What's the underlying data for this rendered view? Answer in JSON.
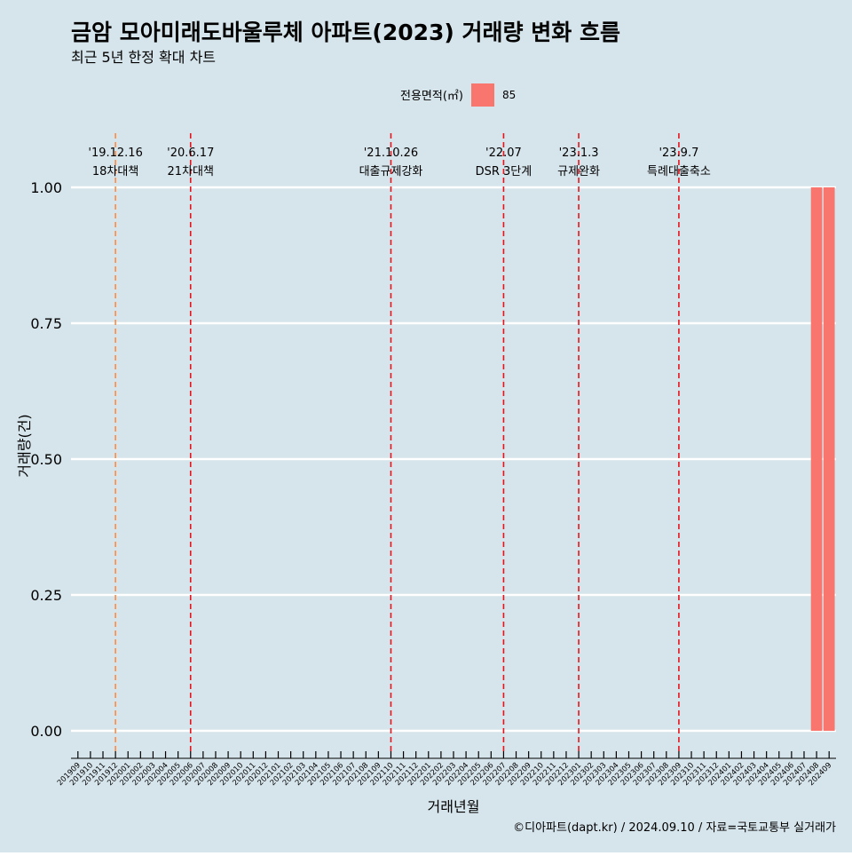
{
  "colors": {
    "background": "#d6e4eb",
    "bar": "#f8766d",
    "grid": "#ffffff",
    "policy_line_red": "#e8141c",
    "policy_line_orange": "#ff8a40",
    "text": "#000000"
  },
  "chart_data": {
    "type": "bar",
    "title": "금암 모아미래도바울루체 아파트(2023) 거래량 변화 흐름",
    "subtitle": "최근 5년 한정 확대 차트",
    "xlabel": "거래년월",
    "ylabel": "거래량(건)",
    "ylim": [
      0,
      1.0
    ],
    "y_ticks": [
      "0.00",
      "0.25",
      "0.50",
      "0.75",
      "1.00"
    ],
    "y_tick_values": [
      0,
      0.25,
      0.5,
      0.75,
      1.0
    ],
    "grid": true,
    "legend": {
      "title": "전용면적(㎡)",
      "position": "top",
      "entries": [
        "85"
      ]
    },
    "categories": [
      "201909",
      "201910",
      "201911",
      "201912",
      "202001",
      "202002",
      "202003",
      "202004",
      "202005",
      "202006",
      "202007",
      "202008",
      "202009",
      "202010",
      "202011",
      "202012",
      "202101",
      "202102",
      "202103",
      "202104",
      "202105",
      "202106",
      "202107",
      "202108",
      "202109",
      "202110",
      "202111",
      "202112",
      "202201",
      "202202",
      "202203",
      "202204",
      "202205",
      "202206",
      "202207",
      "202208",
      "202209",
      "202210",
      "202211",
      "202212",
      "202301",
      "202302",
      "202303",
      "202304",
      "202305",
      "202306",
      "202307",
      "202308",
      "202309",
      "202310",
      "202311",
      "202312",
      "202401",
      "202402",
      "202403",
      "202404",
      "202405",
      "202406",
      "202407",
      "202408",
      "202409"
    ],
    "series": [
      {
        "name": "85",
        "values": [
          0,
          0,
          0,
          0,
          0,
          0,
          0,
          0,
          0,
          0,
          0,
          0,
          0,
          0,
          0,
          0,
          0,
          0,
          0,
          0,
          0,
          0,
          0,
          0,
          0,
          0,
          0,
          0,
          0,
          0,
          0,
          0,
          0,
          0,
          0,
          0,
          0,
          0,
          0,
          0,
          0,
          0,
          0,
          0,
          0,
          0,
          0,
          0,
          0,
          0,
          0,
          0,
          0,
          0,
          0,
          0,
          0,
          0,
          0,
          1,
          1
        ]
      }
    ],
    "policy_lines": [
      {
        "date": "'19.12.16",
        "label": "18차대책",
        "month": "201912",
        "style": "orange"
      },
      {
        "date": "'20.6.17",
        "label": "21차대책",
        "month": "202006",
        "style": "red"
      },
      {
        "date": "'21.10.26",
        "label": "대출규제강화",
        "month": "202110",
        "style": "red"
      },
      {
        "date": "'22.07",
        "label": "DSR 3단계",
        "month": "202207",
        "style": "red"
      },
      {
        "date": "'23.1.3",
        "label": "규제완화",
        "month": "202301",
        "style": "red"
      },
      {
        "date": "'23.9.7",
        "label": "특례대출축소",
        "month": "202309",
        "style": "red"
      }
    ],
    "caption": "©디아파트(dapt.kr) / 2024.09.10 / 자료=국토교통부 실거래가"
  }
}
